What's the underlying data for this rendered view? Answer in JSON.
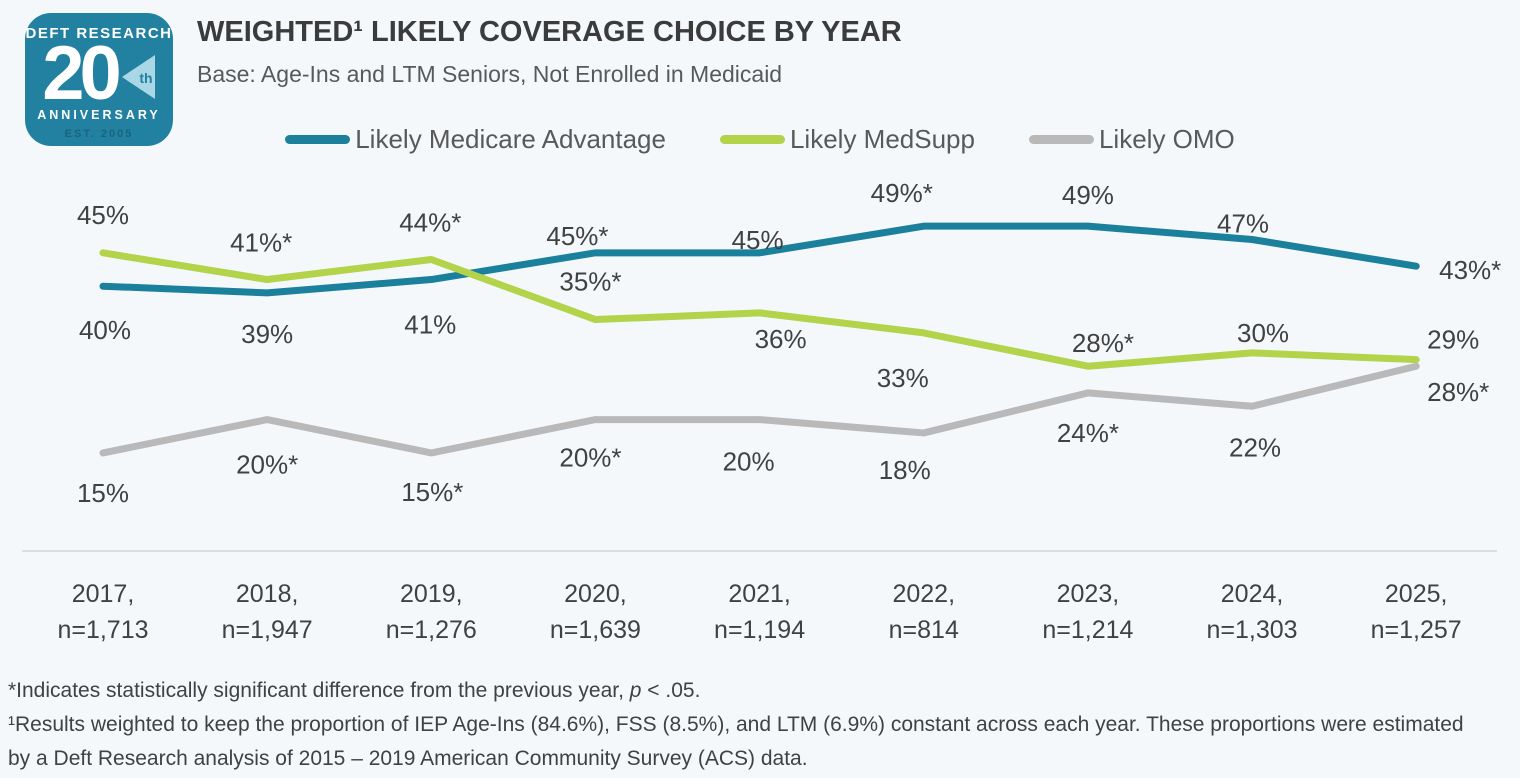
{
  "page": {
    "background": "#f4f8fb"
  },
  "logo": {
    "line1": "DEFT RESEARCH",
    "number": "20",
    "suffix": "th",
    "line2": "ANNIVERSARY",
    "line3": "EST. 2005",
    "teal": "#2281a1",
    "triangle_blue": "#aad7e6"
  },
  "header": {
    "title": "WEIGHTED¹ LIKELY COVERAGE CHOICE BY YEAR",
    "subtitle": "Base: Age-Ins and LTM Seniors, Not Enrolled in Medicaid"
  },
  "chart_data": {
    "type": "line",
    "title": "WEIGHTED¹ LIKELY COVERAGE CHOICE BY YEAR",
    "grid": false,
    "legend_position": "top",
    "ylim": [
      0,
      55
    ],
    "axis_line_color": "#dedede",
    "label_color": "#414141",
    "x_labels": [
      {
        "year": "2017,",
        "n": "n=1,713"
      },
      {
        "year": "2018,",
        "n": "n=1,947"
      },
      {
        "year": "2019,",
        "n": "n=1,276"
      },
      {
        "year": "2020,",
        "n": "n=1,639"
      },
      {
        "year": "2021,",
        "n": "n=1,194"
      },
      {
        "year": "2022,",
        "n": "n=814"
      },
      {
        "year": "2023,",
        "n": "n=1,214"
      },
      {
        "year": "2024,",
        "n": "n=1,303"
      },
      {
        "year": "2025,",
        "n": "n=1,257"
      }
    ],
    "series": [
      {
        "name": "Likely Medicare Advantage",
        "color": "#1a809c",
        "values": [
          40,
          39,
          41,
          45,
          45,
          49,
          49,
          47,
          43
        ],
        "point_labels": [
          "40%",
          "39%",
          "41%",
          "45%*",
          "45%",
          "49%*",
          "49%",
          "47%",
          "43%*"
        ]
      },
      {
        "name": "Likely MedSupp",
        "color": "#b2d34a",
        "values": [
          45,
          41,
          44,
          35,
          36,
          33,
          28,
          30,
          29
        ],
        "point_labels": [
          "45%",
          "41%*",
          "44%*",
          "35%*",
          "36%",
          "33%",
          "28%*",
          "30%",
          "29%"
        ]
      },
      {
        "name": "Likely OMO",
        "color": "#b9b9b9",
        "values": [
          15,
          20,
          15,
          20,
          20,
          18,
          24,
          22,
          28
        ],
        "point_labels": [
          "15%",
          "20%*",
          "15%*",
          "20%*",
          "20%",
          "18%",
          "24%*",
          "22%",
          "28%*"
        ]
      }
    ]
  },
  "footnotes": {
    "significance": {
      "before": "*Indicates statistically significant difference from the previous year, ",
      "italic": "p",
      "after": " < .05."
    },
    "weighting_lines": [
      "¹Results weighted to keep the proportion of IEP Age-Ins (84.6%), FSS (8.5%), and LTM (6.9%) constant across each year. These proportions were estimated",
      "by a Deft Research analysis of 2015 – 2019 American Community Survey (ACS) data."
    ]
  }
}
